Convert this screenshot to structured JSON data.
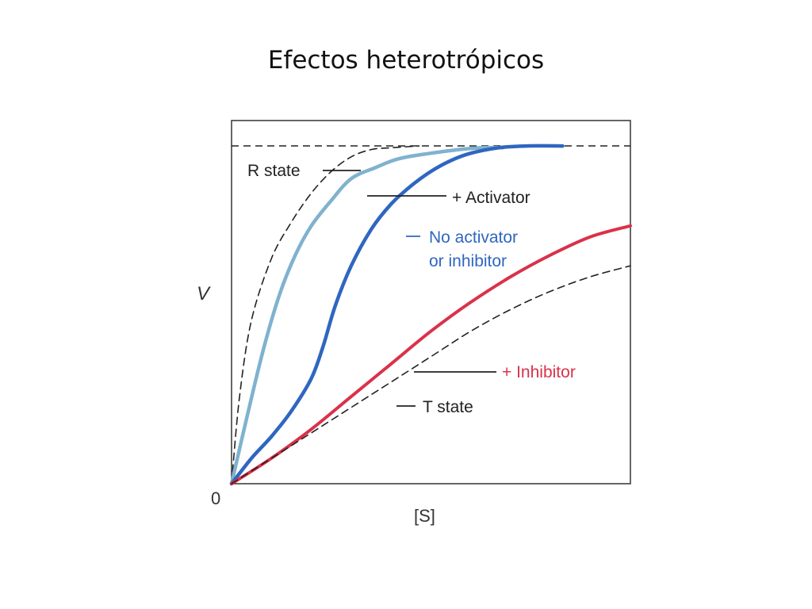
{
  "slide": {
    "title": "Efectos heterotrópicos"
  },
  "colors": {
    "r_state": "#222222",
    "activator": "#7fb2cf",
    "no_effector": "#2f66c0",
    "inhibitor": "#d9324a",
    "t_state": "#222222",
    "axes": "#333333",
    "vmax_line": "#222222"
  },
  "chart_data": {
    "type": "line",
    "title": "",
    "xlabel": "[S]",
    "ylabel": "V",
    "origin_label": "0",
    "xlim": [
      0,
      1
    ],
    "ylim": [
      0,
      1
    ],
    "grid": false,
    "legend": "inline labels",
    "vmax": 0.93,
    "series": [
      {
        "name": "R state",
        "style": "dashed",
        "x": [
          0,
          0.02,
          0.05,
          0.1,
          0.15,
          0.2,
          0.25,
          0.3,
          0.35,
          0.4,
          0.47
        ],
        "y": [
          0,
          0.24,
          0.45,
          0.62,
          0.72,
          0.8,
          0.86,
          0.9,
          0.92,
          0.925,
          0.93
        ]
      },
      {
        "name": "+ Activator",
        "style": "solid",
        "x": [
          0,
          0.04,
          0.08,
          0.12,
          0.16,
          0.2,
          0.25,
          0.3,
          0.36,
          0.42,
          0.5,
          0.57,
          0.63,
          0.68
        ],
        "y": [
          0,
          0.19,
          0.37,
          0.52,
          0.63,
          0.71,
          0.78,
          0.84,
          0.87,
          0.895,
          0.91,
          0.92,
          0.925,
          0.925
        ]
      },
      {
        "name": "No activator\nor inhibitor",
        "style": "solid",
        "x": [
          0,
          0.05,
          0.1,
          0.15,
          0.2,
          0.23,
          0.26,
          0.3,
          0.35,
          0.4,
          0.45,
          0.5,
          0.55,
          0.6,
          0.67,
          0.74,
          0.83
        ],
        "y": [
          0,
          0.07,
          0.13,
          0.2,
          0.29,
          0.38,
          0.49,
          0.6,
          0.7,
          0.77,
          0.82,
          0.86,
          0.89,
          0.91,
          0.925,
          0.93,
          0.93
        ]
      },
      {
        "name": "+ Inhibitor",
        "style": "solid",
        "x": [
          0,
          0.1,
          0.2,
          0.3,
          0.4,
          0.5,
          0.6,
          0.7,
          0.8,
          0.9,
          1.0
        ],
        "y": [
          0,
          0.07,
          0.15,
          0.24,
          0.33,
          0.42,
          0.5,
          0.57,
          0.63,
          0.68,
          0.71
        ]
      },
      {
        "name": "T state",
        "style": "dashed",
        "x": [
          0,
          0.1,
          0.2,
          0.3,
          0.4,
          0.5,
          0.6,
          0.7,
          0.8,
          0.9,
          1.0
        ],
        "y": [
          0,
          0.07,
          0.14,
          0.21,
          0.28,
          0.35,
          0.42,
          0.48,
          0.53,
          0.57,
          0.6
        ]
      }
    ]
  }
}
